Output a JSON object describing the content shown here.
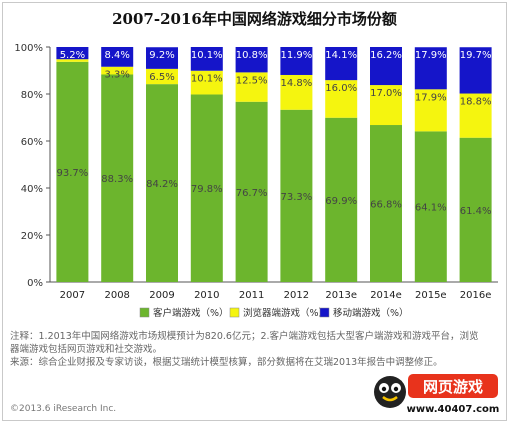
{
  "page": {
    "title": "2007-2016年中国网络游戏细分市场份额",
    "notes": [
      "注释：1.2013年中国网络游戏市场规模预计为820.6亿元；2.客户端游戏包括大型客户端游戏和游戏平台，浏览器端游戏包括网页游戏和社交游戏。",
      "来源：综合企业财报及专家访谈，根据艾瑞统计模型核算，部分数据将在艾瑞2013年报告中调整修正。"
    ],
    "copyright": "©2013.6 iResearch Inc.",
    "logo": {
      "text": "网页游戏",
      "url_text": "www.40407.com"
    }
  },
  "chart_data": {
    "type": "bar",
    "stacked": true,
    "percent_stacked": true,
    "categories": [
      "2007",
      "2008",
      "2009",
      "2010",
      "2011",
      "2012",
      "2013e",
      "2014e",
      "2015e",
      "2016e"
    ],
    "series": [
      {
        "name": "客户端游戏（%）",
        "color": "#6cb52d",
        "values": [
          93.7,
          88.3,
          84.2,
          79.8,
          76.7,
          73.3,
          69.9,
          66.8,
          64.1,
          61.4
        ],
        "labels": [
          "93.7%",
          "88.3%",
          "84.2%",
          "79.8%",
          "76.7%",
          "73.3%",
          "69.9%",
          "66.8%",
          "64.1%",
          "61.4%"
        ]
      },
      {
        "name": "浏览器端游戏（%）",
        "color": "#f5f50f",
        "values": [
          1.1,
          3.3,
          6.5,
          10.1,
          12.5,
          14.8,
          16.0,
          17.0,
          17.9,
          18.8
        ],
        "labels": [
          "",
          "3.3%",
          "6.5%",
          "10.1%",
          "12.5%",
          "14.8%",
          "16.0%",
          "17.0%",
          "17.9%",
          "18.8%"
        ]
      },
      {
        "name": "移动端游戏（%）",
        "color": "#1515c9",
        "values": [
          5.2,
          8.4,
          9.2,
          10.1,
          10.8,
          11.9,
          14.1,
          16.2,
          17.9,
          19.7
        ],
        "labels": [
          "5.2%",
          "8.4%",
          "9.2%",
          "10.1%",
          "10.8%",
          "11.9%",
          "14.1%",
          "16.2%",
          "17.9%",
          "19.7%"
        ]
      }
    ],
    "y_ticks": [
      "0%",
      "20%",
      "40%",
      "60%",
      "80%",
      "100%"
    ],
    "ylim": [
      0,
      100
    ],
    "grid": false,
    "legend_position": "bottom-center"
  }
}
